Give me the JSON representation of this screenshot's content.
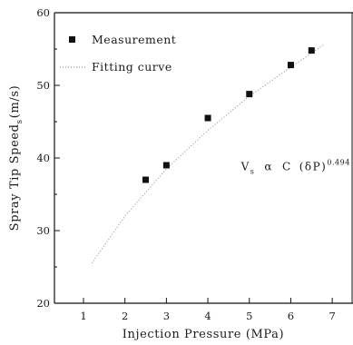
{
  "chart_data": {
    "type": "scatter",
    "title": "",
    "xlabel": "Injection Pressure (MPa)",
    "ylabel": "Spray Tip Speed (m/s)",
    "ylabel_main": "Spray Tip Speed",
    "ylabel_sub": "s",
    "ylabel_unit": "(m/s)",
    "xlim": [
      0.3,
      7.5
    ],
    "ylim": [
      20,
      60
    ],
    "xticks": [
      1,
      2,
      3,
      4,
      5,
      6,
      7
    ],
    "yticks": [
      20,
      30,
      40,
      50,
      60
    ],
    "grid": false,
    "legend_position": "top-left",
    "series": [
      {
        "name": "Measurement",
        "marker": "square",
        "color": "#111111",
        "x": [
          2.5,
          3.0,
          4.0,
          5.0,
          6.0,
          6.5
        ],
        "y": [
          37.0,
          39.0,
          45.5,
          48.8,
          52.8,
          54.8
        ]
      },
      {
        "name": "Fitting curve",
        "line": "dotted",
        "color": "#9a9a9a",
        "x": [
          1.2,
          2.0,
          3.0,
          4.0,
          5.0,
          6.0,
          6.8
        ],
        "y": [
          25.5,
          32.0,
          38.5,
          43.8,
          48.5,
          52.5,
          55.6
        ]
      }
    ],
    "annotation": {
      "v": "V",
      "v_sub": "s",
      "alpha": "α",
      "c": "C",
      "dp": "(δP)",
      "exponent": "0.494",
      "x": 4.8,
      "y": 38.3
    }
  }
}
